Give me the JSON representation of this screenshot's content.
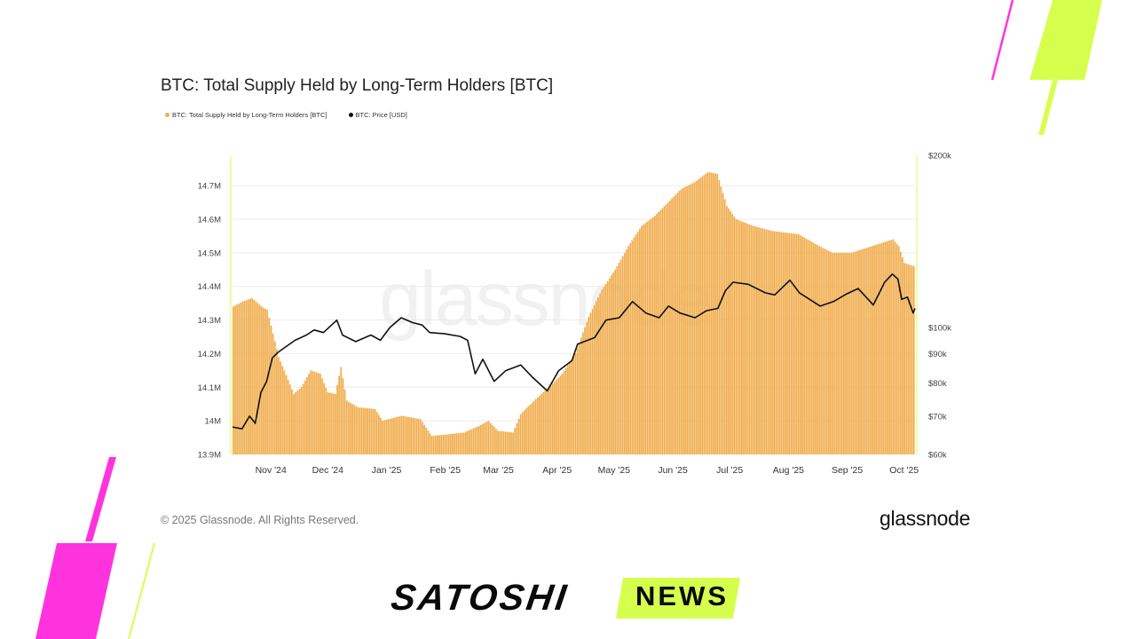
{
  "header": {
    "title": "BTC: Total Supply Held by Long-Term Holders [BTC]"
  },
  "legend": {
    "supply_label": "BTC: Total Supply Held by Long-Term Holders [BTC]",
    "price_label": "BTC: Price [USD]"
  },
  "footer": {
    "copyright": "© 2025 Glassnode. All Rights Reserved.",
    "brand": "glassnode",
    "watermark": "glassnode"
  },
  "banner": {
    "satoshi": "SATOSHI",
    "news": "NEWS"
  },
  "colors": {
    "supply": "#f0ad4e",
    "price": "#111111",
    "accent_pink": "#ff33dd",
    "accent_lime": "#d6ff4d"
  },
  "chart_data": {
    "type": "bar",
    "title": "BTC: Total Supply Held by Long-Term Holders [BTC]",
    "x_ticks": [
      "Nov '24",
      "Dec '24",
      "Jan '25",
      "Feb '25",
      "Mar '25",
      "Apr '25",
      "May '25",
      "Jun '25",
      "Jul '25",
      "Aug '25",
      "Sep '25",
      "Oct '25"
    ],
    "left_axis": {
      "ticks": [
        {
          "value": 13900000,
          "label": "13.9M"
        },
        {
          "value": 14000000,
          "label": "14M"
        },
        {
          "value": 14100000,
          "label": "14.1M"
        },
        {
          "value": 14200000,
          "label": "14.2M"
        },
        {
          "value": 14300000,
          "label": "14.3M"
        },
        {
          "value": 14400000,
          "label": "14.4M"
        },
        {
          "value": 14500000,
          "label": "14.5M"
        },
        {
          "value": 14600000,
          "label": "14.6M"
        },
        {
          "value": 14700000,
          "label": "14.7M"
        }
      ],
      "ylim": [
        13900000,
        14790000
      ]
    },
    "right_axis": {
      "scale": "log",
      "ticks": [
        {
          "value": 60000,
          "label": "$60k"
        },
        {
          "value": 70000,
          "label": "$70k"
        },
        {
          "value": 80000,
          "label": "$80k"
        },
        {
          "value": 90000,
          "label": "$90k"
        },
        {
          "value": 100000,
          "label": "$100k"
        },
        {
          "value": 200000,
          "label": "$200k"
        }
      ],
      "ylim": [
        60000,
        200000
      ]
    },
    "x_range": [
      "2024-10-23",
      "2025-10-18"
    ],
    "series": [
      {
        "name": "BTC: Total Supply Held by Long-Term Holders [BTC]",
        "axis": "left",
        "kind": "bar",
        "points": [
          [
            "2024-10-23",
            14340000
          ],
          [
            "2024-10-28",
            14355000
          ],
          [
            "2024-11-02",
            14365000
          ],
          [
            "2024-11-07",
            14340000
          ],
          [
            "2024-11-10",
            14330000
          ],
          [
            "2024-11-13",
            14260000
          ],
          [
            "2024-11-16",
            14190000
          ],
          [
            "2024-11-19",
            14150000
          ],
          [
            "2024-11-24",
            14080000
          ],
          [
            "2024-11-28",
            14100000
          ],
          [
            "2024-12-03",
            14150000
          ],
          [
            "2024-12-08",
            14140000
          ],
          [
            "2024-12-12",
            14085000
          ],
          [
            "2024-12-16",
            14080000
          ],
          [
            "2024-12-19",
            14160000
          ],
          [
            "2024-12-22",
            14060000
          ],
          [
            "2024-12-28",
            14040000
          ],
          [
            "2025-01-06",
            14035000
          ],
          [
            "2025-01-10",
            14000000
          ],
          [
            "2025-01-20",
            14015000
          ],
          [
            "2025-01-30",
            14005000
          ],
          [
            "2025-02-05",
            13955000
          ],
          [
            "2025-02-14",
            13960000
          ],
          [
            "2025-02-22",
            13965000
          ],
          [
            "2025-03-02",
            13985000
          ],
          [
            "2025-03-07",
            14000000
          ],
          [
            "2025-03-12",
            13970000
          ],
          [
            "2025-03-20",
            13965000
          ],
          [
            "2025-03-24",
            14020000
          ],
          [
            "2025-04-01",
            14065000
          ],
          [
            "2025-04-08",
            14100000
          ],
          [
            "2025-04-15",
            14140000
          ],
          [
            "2025-04-22",
            14200000
          ],
          [
            "2025-04-29",
            14310000
          ],
          [
            "2025-05-06",
            14390000
          ],
          [
            "2025-05-13",
            14450000
          ],
          [
            "2025-05-20",
            14520000
          ],
          [
            "2025-05-27",
            14580000
          ],
          [
            "2025-06-03",
            14610000
          ],
          [
            "2025-06-10",
            14650000
          ],
          [
            "2025-06-17",
            14690000
          ],
          [
            "2025-06-24",
            14710000
          ],
          [
            "2025-07-01",
            14740000
          ],
          [
            "2025-07-06",
            14735000
          ],
          [
            "2025-07-11",
            14640000
          ],
          [
            "2025-07-16",
            14600000
          ],
          [
            "2025-07-25",
            14580000
          ],
          [
            "2025-08-04",
            14565000
          ],
          [
            "2025-08-18",
            14555000
          ],
          [
            "2025-08-29",
            14520000
          ],
          [
            "2025-09-05",
            14500000
          ],
          [
            "2025-09-15",
            14500000
          ],
          [
            "2025-09-26",
            14520000
          ],
          [
            "2025-10-07",
            14540000
          ],
          [
            "2025-10-10",
            14520000
          ],
          [
            "2025-10-13",
            14470000
          ],
          [
            "2025-10-18",
            14460000
          ]
        ]
      },
      {
        "name": "BTC: Price [USD]",
        "axis": "right",
        "kind": "line",
        "points": [
          [
            "2024-10-23",
            67000
          ],
          [
            "2024-10-28",
            66500
          ],
          [
            "2024-11-01",
            70000
          ],
          [
            "2024-11-04",
            68000
          ],
          [
            "2024-11-07",
            77000
          ],
          [
            "2024-11-10",
            80500
          ],
          [
            "2024-11-13",
            88500
          ],
          [
            "2024-11-16",
            90500
          ],
          [
            "2024-11-19",
            92000
          ],
          [
            "2024-11-25",
            95000
          ],
          [
            "2024-12-01",
            97000
          ],
          [
            "2024-12-05",
            99000
          ],
          [
            "2024-12-10",
            98000
          ],
          [
            "2024-12-17",
            103000
          ],
          [
            "2024-12-20",
            97000
          ],
          [
            "2024-12-27",
            94500
          ],
          [
            "2025-01-04",
            97000
          ],
          [
            "2025-01-09",
            95000
          ],
          [
            "2025-01-14",
            100000
          ],
          [
            "2025-01-20",
            104000
          ],
          [
            "2025-01-26",
            102000
          ],
          [
            "2025-01-31",
            101000
          ],
          [
            "2025-02-04",
            98000
          ],
          [
            "2025-02-12",
            97500
          ],
          [
            "2025-02-20",
            96500
          ],
          [
            "2025-02-24",
            95000
          ],
          [
            "2025-02-28",
            83000
          ],
          [
            "2025-03-04",
            88000
          ],
          [
            "2025-03-10",
            80500
          ],
          [
            "2025-03-16",
            84000
          ],
          [
            "2025-03-24",
            86000
          ],
          [
            "2025-03-30",
            82000
          ],
          [
            "2025-04-07",
            77500
          ],
          [
            "2025-04-13",
            84000
          ],
          [
            "2025-04-20",
            87500
          ],
          [
            "2025-04-23",
            93500
          ],
          [
            "2025-05-02",
            96000
          ],
          [
            "2025-05-08",
            103000
          ],
          [
            "2025-05-15",
            104000
          ],
          [
            "2025-05-22",
            111000
          ],
          [
            "2025-05-29",
            106000
          ],
          [
            "2025-06-05",
            104000
          ],
          [
            "2025-06-10",
            109000
          ],
          [
            "2025-06-16",
            106000
          ],
          [
            "2025-06-24",
            104000
          ],
          [
            "2025-06-30",
            107000
          ],
          [
            "2025-07-06",
            108000
          ],
          [
            "2025-07-10",
            116000
          ],
          [
            "2025-07-14",
            120000
          ],
          [
            "2025-07-22",
            119000
          ],
          [
            "2025-07-31",
            115000
          ],
          [
            "2025-08-05",
            114000
          ],
          [
            "2025-08-13",
            121000
          ],
          [
            "2025-08-18",
            115000
          ],
          [
            "2025-08-29",
            109000
          ],
          [
            "2025-09-05",
            111000
          ],
          [
            "2025-09-12",
            114500
          ],
          [
            "2025-09-18",
            117000
          ],
          [
            "2025-09-26",
            109500
          ],
          [
            "2025-10-02",
            120000
          ],
          [
            "2025-10-06",
            124000
          ],
          [
            "2025-10-09",
            121500
          ],
          [
            "2025-10-11",
            112000
          ],
          [
            "2025-10-14",
            113000
          ],
          [
            "2025-10-17",
            106000
          ],
          [
            "2025-10-18",
            108000
          ]
        ]
      }
    ]
  }
}
